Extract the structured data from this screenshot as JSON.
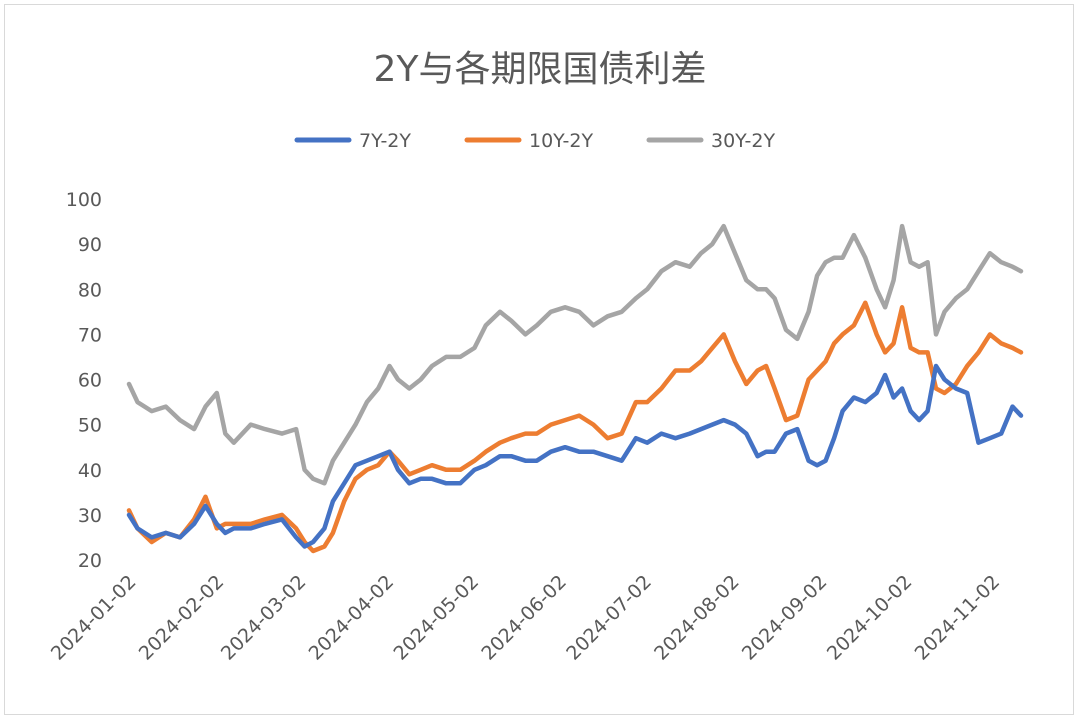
{
  "chart_data": {
    "type": "line",
    "title": "2Y与各期限国债利差",
    "xlabel": "",
    "ylabel": "",
    "ylim": [
      20,
      100
    ],
    "yticks": [
      20,
      30,
      40,
      50,
      60,
      70,
      80,
      90,
      100
    ],
    "xlim": [
      "2024-01-02",
      "2024-11-12"
    ],
    "xticks": [
      "2024-01-02",
      "2024-02-02",
      "2024-03-02",
      "2024-04-02",
      "2024-05-02",
      "2024-06-02",
      "2024-07-02",
      "2024-08-02",
      "2024-09-02",
      "2024-10-02",
      "2024-11-02"
    ],
    "grid": false,
    "legend": "top",
    "series": [
      {
        "name": "7Y-2Y",
        "color": "#4472c4",
        "x": [
          "2024-01-02",
          "2024-01-05",
          "2024-01-10",
          "2024-01-15",
          "2024-01-20",
          "2024-01-25",
          "2024-01-29",
          "2024-02-02",
          "2024-02-05",
          "2024-02-08",
          "2024-02-14",
          "2024-02-19",
          "2024-02-25",
          "2024-03-01",
          "2024-03-04",
          "2024-03-07",
          "2024-03-11",
          "2024-03-14",
          "2024-03-18",
          "2024-03-22",
          "2024-03-26",
          "2024-03-30",
          "2024-04-03",
          "2024-04-06",
          "2024-04-10",
          "2024-04-14",
          "2024-04-18",
          "2024-04-23",
          "2024-04-28",
          "2024-05-03",
          "2024-05-07",
          "2024-05-12",
          "2024-05-16",
          "2024-05-21",
          "2024-05-25",
          "2024-05-30",
          "2024-06-04",
          "2024-06-09",
          "2024-06-14",
          "2024-06-19",
          "2024-06-24",
          "2024-06-29",
          "2024-07-03",
          "2024-07-08",
          "2024-07-13",
          "2024-07-18",
          "2024-07-22",
          "2024-07-26",
          "2024-07-30",
          "2024-08-03",
          "2024-08-07",
          "2024-08-11",
          "2024-08-14",
          "2024-08-17",
          "2024-08-21",
          "2024-08-25",
          "2024-08-29",
          "2024-09-01",
          "2024-09-04",
          "2024-09-07",
          "2024-09-10",
          "2024-09-14",
          "2024-09-18",
          "2024-09-22",
          "2024-09-25",
          "2024-09-28",
          "2024-10-01",
          "2024-10-04",
          "2024-10-07",
          "2024-10-10",
          "2024-10-13",
          "2024-10-16",
          "2024-10-20",
          "2024-10-24",
          "2024-10-28",
          "2024-11-01",
          "2024-11-05",
          "2024-11-09",
          "2024-11-12"
        ],
        "values": [
          30,
          27,
          25,
          26,
          25,
          28,
          32,
          28,
          26,
          27,
          27,
          28,
          29,
          25,
          23,
          24,
          27,
          33,
          37,
          41,
          42,
          43,
          44,
          40,
          37,
          38,
          38,
          37,
          37,
          40,
          41,
          43,
          43,
          42,
          42,
          44,
          45,
          44,
          44,
          43,
          42,
          47,
          46,
          48,
          47,
          48,
          49,
          50,
          51,
          50,
          48,
          43,
          44,
          44,
          48,
          49,
          42,
          41,
          42,
          47,
          53,
          56,
          55,
          57,
          61,
          56,
          58,
          53,
          51,
          53,
          63,
          60,
          58,
          57,
          46,
          47,
          48,
          54,
          52
        ]
      },
      {
        "name": "10Y-2Y",
        "color": "#ed7d31",
        "x": [
          "2024-01-02",
          "2024-01-05",
          "2024-01-10",
          "2024-01-15",
          "2024-01-20",
          "2024-01-25",
          "2024-01-29",
          "2024-02-02",
          "2024-02-05",
          "2024-02-08",
          "2024-02-14",
          "2024-02-19",
          "2024-02-25",
          "2024-03-01",
          "2024-03-04",
          "2024-03-07",
          "2024-03-11",
          "2024-03-14",
          "2024-03-18",
          "2024-03-22",
          "2024-03-26",
          "2024-03-30",
          "2024-04-03",
          "2024-04-06",
          "2024-04-10",
          "2024-04-14",
          "2024-04-18",
          "2024-04-23",
          "2024-04-28",
          "2024-05-03",
          "2024-05-07",
          "2024-05-12",
          "2024-05-16",
          "2024-05-21",
          "2024-05-25",
          "2024-05-30",
          "2024-06-04",
          "2024-06-09",
          "2024-06-14",
          "2024-06-19",
          "2024-06-24",
          "2024-06-29",
          "2024-07-03",
          "2024-07-08",
          "2024-07-13",
          "2024-07-18",
          "2024-07-22",
          "2024-07-26",
          "2024-07-30",
          "2024-08-03",
          "2024-08-07",
          "2024-08-11",
          "2024-08-14",
          "2024-08-17",
          "2024-08-21",
          "2024-08-25",
          "2024-08-29",
          "2024-09-01",
          "2024-09-04",
          "2024-09-07",
          "2024-09-10",
          "2024-09-14",
          "2024-09-18",
          "2024-09-22",
          "2024-09-25",
          "2024-09-28",
          "2024-10-01",
          "2024-10-04",
          "2024-10-07",
          "2024-10-10",
          "2024-10-13",
          "2024-10-16",
          "2024-10-20",
          "2024-10-24",
          "2024-10-28",
          "2024-11-01",
          "2024-11-05",
          "2024-11-09",
          "2024-11-12"
        ],
        "values": [
          31,
          27,
          24,
          26,
          25,
          29,
          34,
          27,
          28,
          28,
          28,
          29,
          30,
          27,
          24,
          22,
          23,
          26,
          33,
          38,
          40,
          41,
          44,
          42,
          39,
          40,
          41,
          40,
          40,
          42,
          44,
          46,
          47,
          48,
          48,
          50,
          51,
          52,
          50,
          47,
          48,
          55,
          55,
          58,
          62,
          62,
          64,
          67,
          70,
          64,
          59,
          62,
          63,
          58,
          51,
          52,
          60,
          62,
          64,
          68,
          70,
          72,
          77,
          70,
          66,
          68,
          76,
          67,
          66,
          66,
          58,
          57,
          59,
          63,
          66,
          70,
          68,
          67,
          66
        ]
      },
      {
        "name": "30Y-2Y",
        "color": "#a5a5a5",
        "x": [
          "2024-01-02",
          "2024-01-05",
          "2024-01-10",
          "2024-01-15",
          "2024-01-20",
          "2024-01-25",
          "2024-01-29",
          "2024-02-02",
          "2024-02-05",
          "2024-02-08",
          "2024-02-14",
          "2024-02-19",
          "2024-02-25",
          "2024-03-01",
          "2024-03-04",
          "2024-03-07",
          "2024-03-11",
          "2024-03-14",
          "2024-03-18",
          "2024-03-22",
          "2024-03-26",
          "2024-03-30",
          "2024-04-03",
          "2024-04-06",
          "2024-04-10",
          "2024-04-14",
          "2024-04-18",
          "2024-04-23",
          "2024-04-28",
          "2024-05-03",
          "2024-05-07",
          "2024-05-12",
          "2024-05-16",
          "2024-05-21",
          "2024-05-25",
          "2024-05-30",
          "2024-06-04",
          "2024-06-09",
          "2024-06-14",
          "2024-06-19",
          "2024-06-24",
          "2024-06-29",
          "2024-07-03",
          "2024-07-08",
          "2024-07-13",
          "2024-07-18",
          "2024-07-22",
          "2024-07-26",
          "2024-07-30",
          "2024-08-03",
          "2024-08-07",
          "2024-08-11",
          "2024-08-14",
          "2024-08-17",
          "2024-08-21",
          "2024-08-25",
          "2024-08-29",
          "2024-09-01",
          "2024-09-04",
          "2024-09-07",
          "2024-09-10",
          "2024-09-14",
          "2024-09-18",
          "2024-09-22",
          "2024-09-25",
          "2024-09-28",
          "2024-10-01",
          "2024-10-04",
          "2024-10-07",
          "2024-10-10",
          "2024-10-13",
          "2024-10-16",
          "2024-10-20",
          "2024-10-24",
          "2024-10-28",
          "2024-11-01",
          "2024-11-05",
          "2024-11-09",
          "2024-11-12"
        ],
        "values": [
          59,
          55,
          53,
          54,
          51,
          49,
          54,
          57,
          48,
          46,
          50,
          49,
          48,
          49,
          40,
          38,
          37,
          42,
          46,
          50,
          55,
          58,
          63,
          60,
          58,
          60,
          63,
          65,
          65,
          67,
          72,
          75,
          73,
          70,
          72,
          75,
          76,
          75,
          72,
          74,
          75,
          78,
          80,
          84,
          86,
          85,
          88,
          90,
          94,
          88,
          82,
          80,
          80,
          78,
          71,
          69,
          75,
          83,
          86,
          87,
          87,
          92,
          87,
          80,
          76,
          82,
          94,
          86,
          85,
          86,
          70,
          75,
          78,
          80,
          84,
          88,
          86,
          85,
          84
        ]
      }
    ]
  }
}
